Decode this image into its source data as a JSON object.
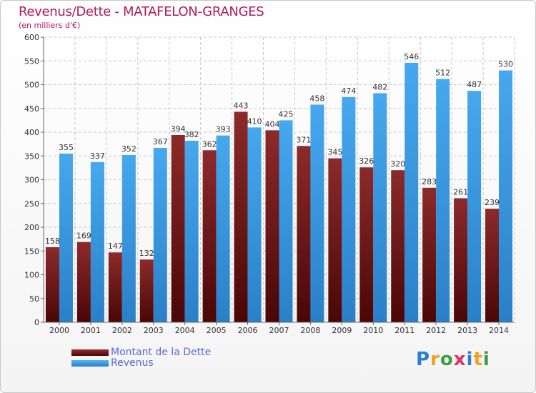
{
  "header": {
    "title": "Revenus/Dette - MATAFELON-GRANGES",
    "subtitle": "(en milliers d'€)"
  },
  "chart_data": {
    "type": "bar",
    "categories": [
      "2000",
      "2001",
      "2002",
      "2003",
      "2004",
      "2005",
      "2006",
      "2007",
      "2008",
      "2009",
      "2010",
      "2011",
      "2012",
      "2013",
      "2014"
    ],
    "series": [
      {
        "name": "Montant de la Dette",
        "values": [
          158,
          169,
          147,
          132,
          394,
          362,
          443,
          404,
          371,
          345,
          326,
          320,
          283,
          261,
          239
        ],
        "color": "#7a1a1a"
      },
      {
        "name": "Revenus",
        "values": [
          355,
          337,
          352,
          367,
          382,
          393,
          410,
          425,
          458,
          474,
          482,
          546,
          512,
          487,
          530
        ],
        "color": "#3a96e0"
      }
    ],
    "ylim": [
      0,
      600
    ],
    "yticks": [
      0,
      50,
      100,
      150,
      200,
      250,
      300,
      350,
      400,
      450,
      500,
      550,
      600
    ],
    "grid": true
  },
  "legend": {
    "items": [
      {
        "label": "Montant de la Dette",
        "color": "#6b1212"
      },
      {
        "label": "Revenus",
        "color": "#3a96e0"
      }
    ]
  },
  "logo": {
    "letters": [
      {
        "char": "P",
        "color": "#2a7fd0"
      },
      {
        "char": "r",
        "color": "#f0a020"
      },
      {
        "char": "o",
        "color": "#3aa040"
      },
      {
        "char": "x",
        "color": "#e03060"
      },
      {
        "char": "i",
        "color": "#2a7fd0"
      },
      {
        "char": "t",
        "color": "#f0a020"
      },
      {
        "char": "i",
        "color": "#3aa040"
      }
    ]
  }
}
